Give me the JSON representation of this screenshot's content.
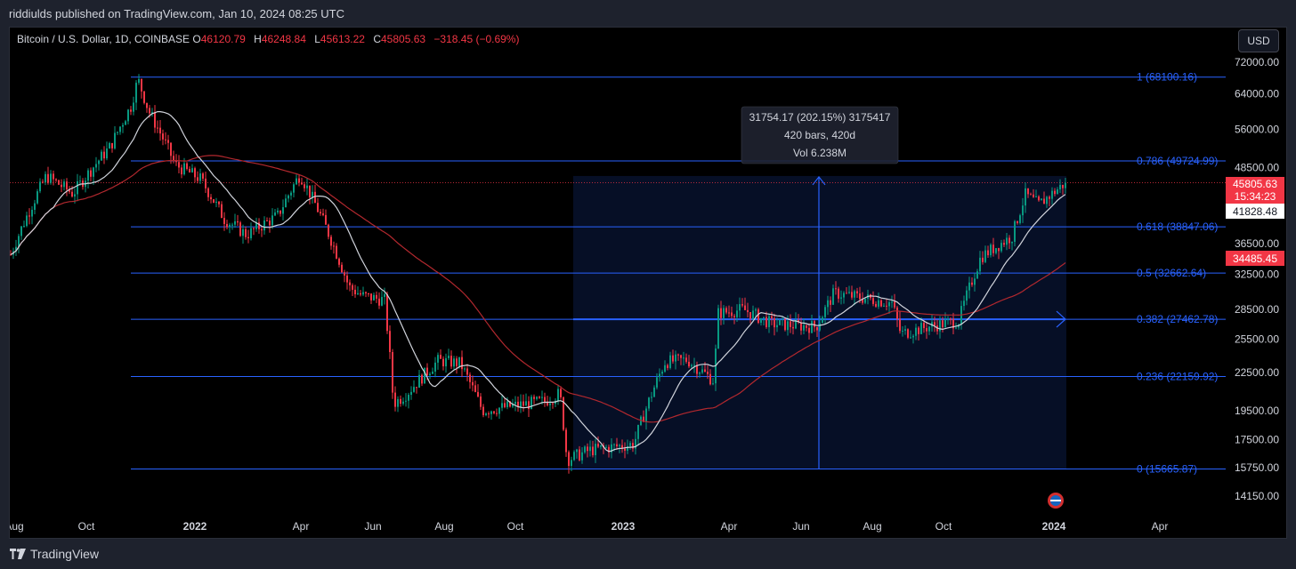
{
  "header": {
    "published": "riddiulds published on TradingView.com, Jan 10, 2024 08:25 UTC"
  },
  "legend": {
    "symbol": "Bitcoin / U.S. Dollar, 1D, COINBASE",
    "o_label": "O",
    "o_value": "46120.79",
    "h_label": "H",
    "h_value": "46248.84",
    "l_label": "L",
    "l_value": "45613.22",
    "c_label": "C",
    "c_value": "45805.63",
    "change": "−318.45 (−0.69%)"
  },
  "currency_button": "USD",
  "measure": {
    "line1": "31754.17 (202.15%) 3175417",
    "line2": "420 bars, 420d",
    "line3": "Vol 6.238M"
  },
  "price_scale": {
    "labels": [
      {
        "text": "72000.00",
        "price": 72000
      },
      {
        "text": "64000.00",
        "price": 64000
      },
      {
        "text": "56000.00",
        "price": 56000
      },
      {
        "text": "48500.00",
        "price": 48500
      },
      {
        "text": "36500.00",
        "price": 36500
      },
      {
        "text": "32500.00",
        "price": 32500
      },
      {
        "text": "28500.00",
        "price": 28500
      },
      {
        "text": "25500.00",
        "price": 25500
      },
      {
        "text": "22500.00",
        "price": 22500
      },
      {
        "text": "19500.00",
        "price": 19500
      },
      {
        "text": "17500.00",
        "price": 17500
      },
      {
        "text": "15750.00",
        "price": 15750
      },
      {
        "text": "14150.00",
        "price": 14150
      }
    ],
    "last_price": "45805.63",
    "countdown": "15:34:23",
    "ma_short_value": "41828.48",
    "ma_long_value": "34485.45"
  },
  "time_scale": [
    {
      "text": "Aug",
      "bold": false
    },
    {
      "text": "Oct",
      "bold": false
    },
    {
      "text": "2022",
      "bold": true
    },
    {
      "text": "Apr",
      "bold": false
    },
    {
      "text": "Jun",
      "bold": false
    },
    {
      "text": "Aug",
      "bold": false
    },
    {
      "text": "Oct",
      "bold": false
    },
    {
      "text": "2023",
      "bold": true
    },
    {
      "text": "Apr",
      "bold": false
    },
    {
      "text": "Jun",
      "bold": false
    },
    {
      "text": "Aug",
      "bold": false
    },
    {
      "text": "Oct",
      "bold": false
    },
    {
      "text": "2024",
      "bold": true
    },
    {
      "text": "Apr",
      "bold": false
    }
  ],
  "fib_levels": [
    {
      "label": "1 (68100.16)",
      "price": 68100.16
    },
    {
      "label": "0.786 (49724.99)",
      "price": 49724.99
    },
    {
      "label": "0.618 (38847.06)",
      "price": 38847.06
    },
    {
      "label": "0.5 (32662.64)",
      "price": 32662.64
    },
    {
      "label": "0.382 (27462.78)",
      "price": 27462.78
    },
    {
      "label": "0.236 (22159.92)",
      "price": 22159.92
    },
    {
      "label": "0 (15665.87)",
      "price": 15665.87
    }
  ],
  "colors": {
    "up": "#089981",
    "down": "#f23645",
    "fib": "#2962ff",
    "ma_short": "#d1d4dc",
    "ma_long": "#b2282e",
    "measure": "#2962ff"
  },
  "footer": {
    "brand": "TradingView"
  }
}
